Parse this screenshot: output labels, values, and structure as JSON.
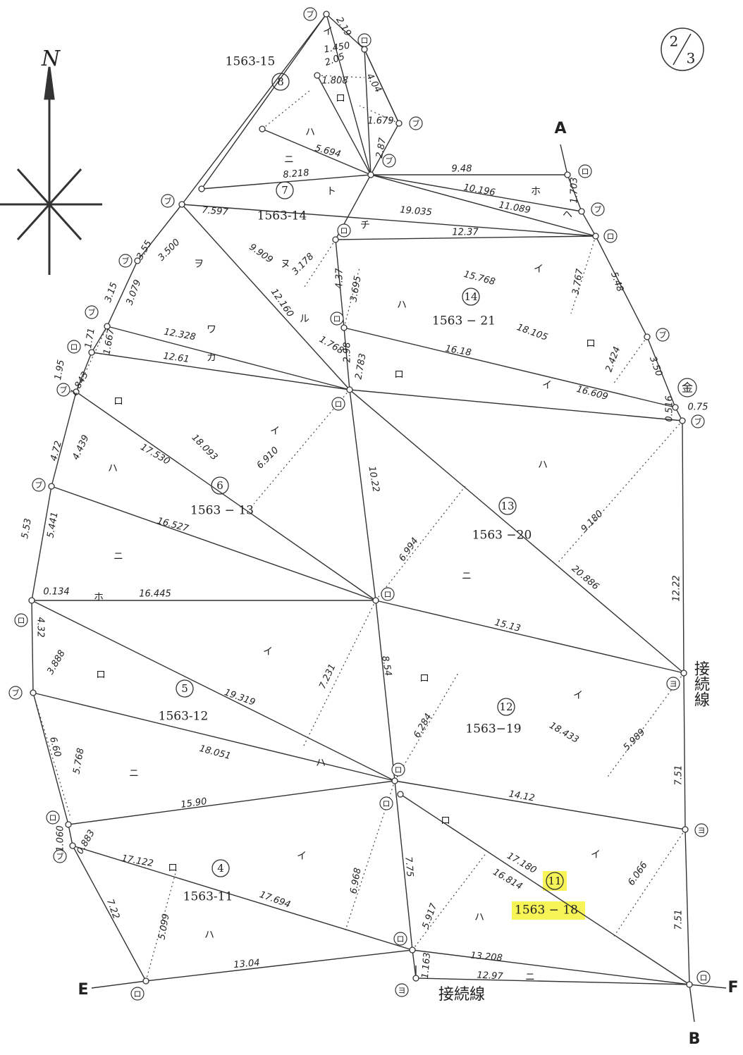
{
  "page_number": {
    "numerator": "2",
    "denominator": "3"
  },
  "north": "N",
  "corner_labels": [
    "A",
    "B",
    "E",
    "F"
  ],
  "connection_labels": [
    "接続線",
    "接続線"
  ],
  "parcels": [
    {
      "number": "4",
      "lot": "1563-11"
    },
    {
      "number": "5",
      "lot": "1563-12"
    },
    {
      "number": "6",
      "lot": "1563 − 13"
    },
    {
      "number": "7",
      "lot": "1563-14"
    },
    {
      "number": "8",
      "lot": "1563-15"
    },
    {
      "number": "11",
      "lot": "1563 − 18"
    },
    {
      "number": "12",
      "lot": "1563−19"
    },
    {
      "number": "13",
      "lot": "1563 −20"
    },
    {
      "number": "14",
      "lot": "1563 − 21"
    }
  ],
  "measurements": [
    "2.19",
    "1.450",
    "2.05",
    "1.808",
    "4.04",
    "1.679",
    "2.87",
    "5.694",
    "8.218",
    "9.48",
    "10.196",
    "11.089",
    "1.703",
    "19.035",
    "12.37",
    "7.597",
    "3.55",
    "3.500",
    "9.909",
    "3.178",
    "4.37",
    "3.695",
    "15.768",
    "3.767",
    "5.48",
    "3.15",
    "3.079",
    "12.160",
    "18.105",
    "2.424",
    "3.50",
    "12.328",
    "16.18",
    "1.768",
    "2.98",
    "2.783",
    "16.609",
    "0.75",
    "0.516",
    "12.61",
    "1.71",
    "1.667",
    "1.95",
    "1.843",
    "17.530",
    "18.093",
    "6.910",
    "4.72",
    "4.439",
    "10.22",
    "9.180",
    "16.527",
    "6.994",
    "5.53",
    "5.441",
    "20.886",
    "12.22",
    "0.134",
    "16.445",
    "15.13",
    "4.32",
    "3.888",
    "7.231",
    "8.54",
    "19.319",
    "6.284",
    "18.433",
    "5.989",
    "18.051",
    "6.60",
    "5.768",
    "7.51",
    "15.90",
    "14.12",
    "17.180",
    "16.814",
    "6.066",
    "17.122",
    "17.694",
    "6.968",
    "7.75",
    "5.917",
    "7.22",
    "5.099",
    "13.04",
    "13.208",
    "12.97",
    "1.163",
    "7.51",
    "0.883",
    "1.060"
  ],
  "triangle_labels": [
    "ト",
    "チ",
    "ホ",
    "ヘ",
    "イ",
    "ロ",
    "ハ",
    "ロ",
    "イ",
    "ヌ",
    "ヲ",
    "ワ",
    "カ",
    "ル",
    "イ",
    "ロ",
    "ハ",
    "ニ",
    "ハ",
    "ニ",
    "ホ",
    "イ",
    "ロ",
    "ロ",
    "イ",
    "ニ",
    "ハ",
    "ロ",
    "イ",
    "イ",
    "ロ",
    "ハ",
    "ハ",
    "ニ",
    "ニ",
    "ハ",
    "ロ",
    "イ"
  ],
  "vertex_marks": [
    "ブ",
    "ロ",
    "ブ",
    "ブ",
    "ロ",
    "ブ",
    "ロ",
    "ロ",
    "ブ",
    "ブ",
    "ブ",
    "ロ",
    "ブ",
    "ブ",
    "ロ",
    "ブ",
    "ロ",
    "ブ",
    "ロ",
    "ロ",
    "ヨ",
    "ロ",
    "ヨ",
    "ヨ",
    "ブ",
    "ロ",
    "ロ",
    "ロ",
    "ロ",
    "ロ",
    "ブ",
    "金"
  ]
}
